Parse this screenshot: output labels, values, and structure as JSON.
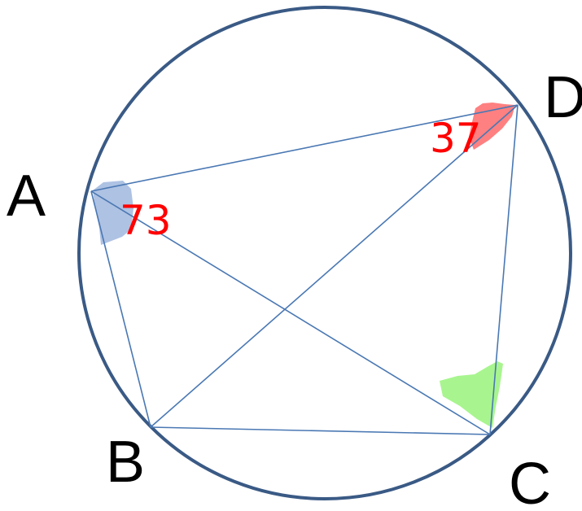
{
  "figure": {
    "points": {
      "A": "A",
      "B": "B",
      "C": "C",
      "D": "D"
    },
    "angles": {
      "at_A": "73",
      "at_D": "37"
    },
    "colors": {
      "circle": "#3a5a85",
      "lines": "#4a78b3",
      "angle_label": "#ff0000",
      "shade_A": "#aec2e3",
      "shade_D": "#ff8080",
      "shade_C": "#a8f58f"
    }
  }
}
